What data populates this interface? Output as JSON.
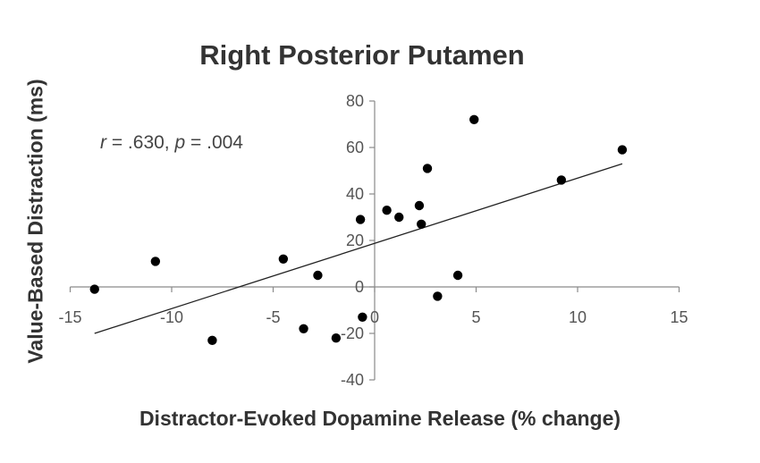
{
  "chart_data": {
    "type": "scatter",
    "title": "Right Posterior Putamen",
    "xlabel": "Distractor-Evoked Dopamine Release (% change)",
    "ylabel": "Value-Based Distraction (ms)",
    "annotation": {
      "r_symbol": "r",
      "r_value": " = .630, ",
      "p_symbol": "p",
      "p_value": " = .004"
    },
    "xlim": [
      -15,
      15
    ],
    "ylim": [
      -40,
      80
    ],
    "x_ticks": [
      -15,
      -10,
      -5,
      0,
      5,
      10,
      15
    ],
    "y_ticks": [
      -40,
      -20,
      0,
      20,
      40,
      60,
      80
    ],
    "x_tick_labels": [
      "-15",
      "-10",
      "-5",
      "0",
      "5",
      "10",
      "15"
    ],
    "y_tick_labels": [
      "-40",
      "-20",
      "0",
      "20",
      "40",
      "60",
      "80"
    ],
    "grid": false,
    "marker_color": "#000000",
    "points": [
      {
        "x": -13.8,
        "y": -1
      },
      {
        "x": -10.8,
        "y": 11
      },
      {
        "x": -8.0,
        "y": -23
      },
      {
        "x": -4.5,
        "y": 12
      },
      {
        "x": -3.5,
        "y": -18
      },
      {
        "x": -2.8,
        "y": 5
      },
      {
        "x": -1.9,
        "y": -22
      },
      {
        "x": -0.7,
        "y": 29
      },
      {
        "x": -0.6,
        "y": -13
      },
      {
        "x": 0.6,
        "y": 33
      },
      {
        "x": 1.2,
        "y": 30
      },
      {
        "x": 2.2,
        "y": 35
      },
      {
        "x": 2.3,
        "y": 27
      },
      {
        "x": 2.6,
        "y": 51
      },
      {
        "x": 3.1,
        "y": -4
      },
      {
        "x": 4.1,
        "y": 5
      },
      {
        "x": 4.9,
        "y": 72
      },
      {
        "x": 9.2,
        "y": 46
      },
      {
        "x": 12.2,
        "y": 59
      }
    ],
    "trendline": {
      "x": [
        -13.8,
        12.2
      ],
      "y": [
        -20,
        53
      ]
    }
  }
}
